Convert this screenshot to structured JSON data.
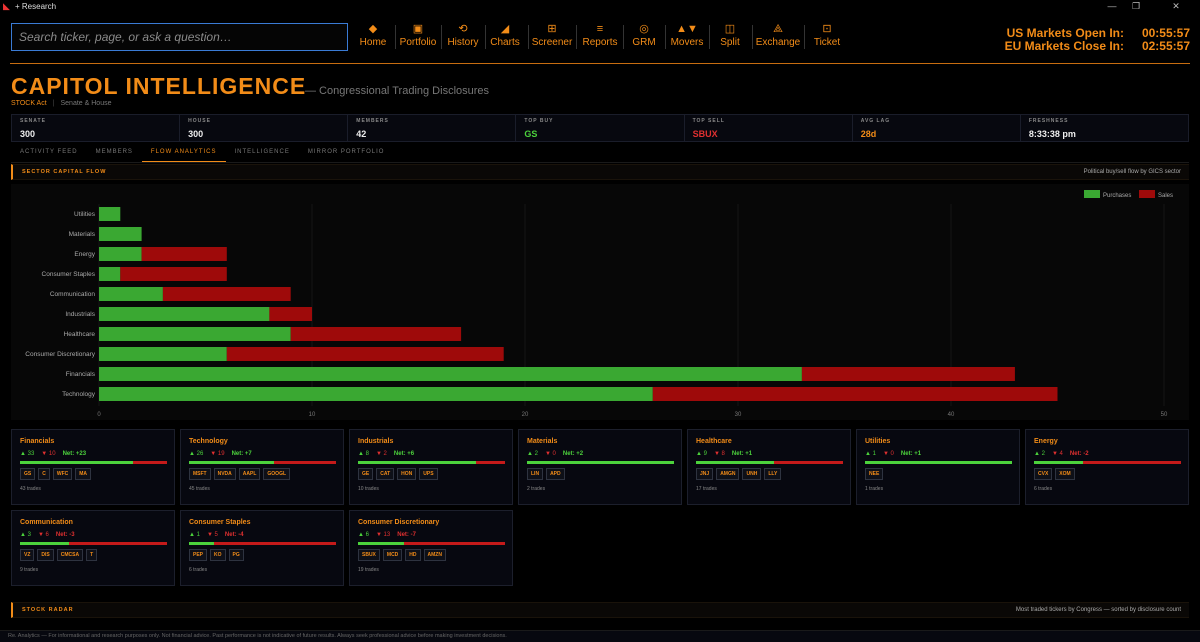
{
  "app": {
    "title": "+ Research"
  },
  "search": {
    "placeholder": "Search ticker, page, or ask a question…"
  },
  "nav": [
    {
      "label": "Home",
      "icon": "diamond-icon",
      "glyph": "◆"
    },
    {
      "label": "Portfolio",
      "icon": "portfolio-icon",
      "glyph": "▣"
    },
    {
      "label": "History",
      "icon": "history-icon",
      "glyph": "⟲"
    },
    {
      "label": "Charts",
      "icon": "charts-icon",
      "glyph": "◢"
    },
    {
      "label": "Screener",
      "icon": "screener-icon",
      "glyph": "⊞"
    },
    {
      "label": "Reports",
      "icon": "reports-icon",
      "glyph": "≡"
    },
    {
      "label": "GRM",
      "icon": "grm-icon",
      "glyph": "◎"
    },
    {
      "label": "Movers",
      "icon": "movers-icon",
      "glyph": "▲▼"
    },
    {
      "label": "Split",
      "icon": "split-icon",
      "glyph": "◫"
    },
    {
      "label": "Exchange",
      "icon": "exchange-icon",
      "glyph": "⟁"
    },
    {
      "label": "Ticket",
      "icon": "ticket-icon",
      "glyph": "⊡"
    }
  ],
  "clocks": [
    {
      "label": "US Markets Open In:",
      "time": "00:55:57"
    },
    {
      "label": "EU Markets Close In:",
      "time": "02:55:57"
    }
  ],
  "page": {
    "title": "CAPITOL INTELLIGENCE",
    "subtitle": "— Congressional Trading Disclosures",
    "tag_primary": "STOCK Act",
    "tag_secondary": "Senate & House"
  },
  "stats": [
    {
      "key": "SENATE",
      "value": "300",
      "color": "#eeeeee"
    },
    {
      "key": "HOUSE",
      "value": "300",
      "color": "#eeeeee"
    },
    {
      "key": "MEMBERS",
      "value": "42",
      "color": "#eeeeee"
    },
    {
      "key": "TOP BUY",
      "value": "GS",
      "color": "#4cd23c"
    },
    {
      "key": "TOP SELL",
      "value": "SBUX",
      "color": "#e03030"
    },
    {
      "key": "AVG LAG",
      "value": "28d",
      "color": "#f28c18"
    },
    {
      "key": "FRESHNESS",
      "value": "8:33:38 pm",
      "color": "#eeeeee"
    }
  ],
  "tabs": [
    {
      "label": "ACTIVITY FEED",
      "active": false
    },
    {
      "label": "MEMBERS",
      "active": false
    },
    {
      "label": "FLOW ANALYTICS",
      "active": true
    },
    {
      "label": "INTELLIGENCE",
      "active": false
    },
    {
      "label": "MIRROR PORTFOLIO",
      "active": false
    }
  ],
  "section_flow": {
    "title": "SECTOR CAPITAL FLOW",
    "note": "Political buy/sell flow by GICS sector"
  },
  "chart_data": {
    "type": "bar",
    "orientation": "horizontal",
    "stacked": true,
    "categories": [
      "Utilities",
      "Materials",
      "Energy",
      "Consumer Staples",
      "Communication",
      "Industrials",
      "Healthcare",
      "Consumer Discretionary",
      "Financials",
      "Technology"
    ],
    "series": [
      {
        "name": "Purchases",
        "values": [
          1,
          2,
          2,
          1,
          3,
          8,
          9,
          6,
          33,
          26
        ],
        "color": "#3aa832"
      },
      {
        "name": "Sales",
        "values": [
          0,
          0,
          4,
          5,
          6,
          2,
          8,
          13,
          10,
          19
        ],
        "color": "#9e0a0a"
      }
    ],
    "xticks": [
      "0",
      "10",
      "20",
      "30",
      "40",
      "50"
    ],
    "xlim": [
      0,
      50
    ],
    "legend": "top-right",
    "grid": true
  },
  "cards": [
    {
      "name": "Financials",
      "buys": "▲ 33",
      "sells": "▼ 10",
      "net": "Net: +23",
      "buy_frac": 0.767,
      "tickers": [
        "GS",
        "C",
        "WFC",
        "MA"
      ],
      "trades": "43 trades",
      "net_positive": true
    },
    {
      "name": "Technology",
      "buys": "▲ 26",
      "sells": "▼ 19",
      "net": "Net: +7",
      "buy_frac": 0.578,
      "tickers": [
        "MSFT",
        "NVDA",
        "AAPL",
        "GOOGL"
      ],
      "trades": "45 trades",
      "net_positive": true
    },
    {
      "name": "Industrials",
      "buys": "▲ 8",
      "sells": "▼ 2",
      "net": "Net: +6",
      "buy_frac": 0.8,
      "tickers": [
        "GE",
        "CAT",
        "HON",
        "UPS"
      ],
      "trades": "10 trades",
      "net_positive": true
    },
    {
      "name": "Materials",
      "buys": "▲ 2",
      "sells": "▼ 0",
      "net": "Net: +2",
      "buy_frac": 1.0,
      "tickers": [
        "LIN",
        "APD"
      ],
      "trades": "2 trades",
      "net_positive": true
    },
    {
      "name": "Healthcare",
      "buys": "▲ 9",
      "sells": "▼ 8",
      "net": "Net: +1",
      "buy_frac": 0.529,
      "tickers": [
        "JNJ",
        "AMGN",
        "UNH",
        "LLY"
      ],
      "trades": "17 trades",
      "net_positive": true
    },
    {
      "name": "Utilities",
      "buys": "▲ 1",
      "sells": "▼ 0",
      "net": "Net: +1",
      "buy_frac": 1.0,
      "tickers": [
        "NEE"
      ],
      "trades": "1 trades",
      "net_positive": true
    },
    {
      "name": "Energy",
      "buys": "▲ 2",
      "sells": "▼ 4",
      "net": "Net: -2",
      "buy_frac": 0.333,
      "tickers": [
        "CVX",
        "XOM"
      ],
      "trades": "6 trades",
      "net_positive": false
    },
    {
      "name": "Communication",
      "buys": "▲ 3",
      "sells": "▼ 6",
      "net": "Net: -3",
      "buy_frac": 0.333,
      "tickers": [
        "VZ",
        "DIS",
        "CMCSA",
        "T"
      ],
      "trades": "9 trades",
      "net_positive": false
    },
    {
      "name": "Consumer Staples",
      "buys": "▲ 1",
      "sells": "▼ 5",
      "net": "Net: -4",
      "buy_frac": 0.167,
      "tickers": [
        "PEP",
        "KO",
        "PG"
      ],
      "trades": "6 trades",
      "net_positive": false
    },
    {
      "name": "Consumer Discretionary",
      "buys": "▲ 6",
      "sells": "▼ 13",
      "net": "Net: -7",
      "buy_frac": 0.316,
      "tickers": [
        "SBUX",
        "MCD",
        "HD",
        "AMZN"
      ],
      "trades": "19 trades",
      "net_positive": false
    }
  ],
  "section_radar": {
    "title": "STOCK RADAR",
    "note": "Most traded tickers by Congress — sorted by disclosure count"
  },
  "footer": {
    "text": "Re. Analytics — For informational and research purposes only. Not financial advice. Past performance is not indicative of future results. Always seek professional advice before making investment decisions."
  }
}
